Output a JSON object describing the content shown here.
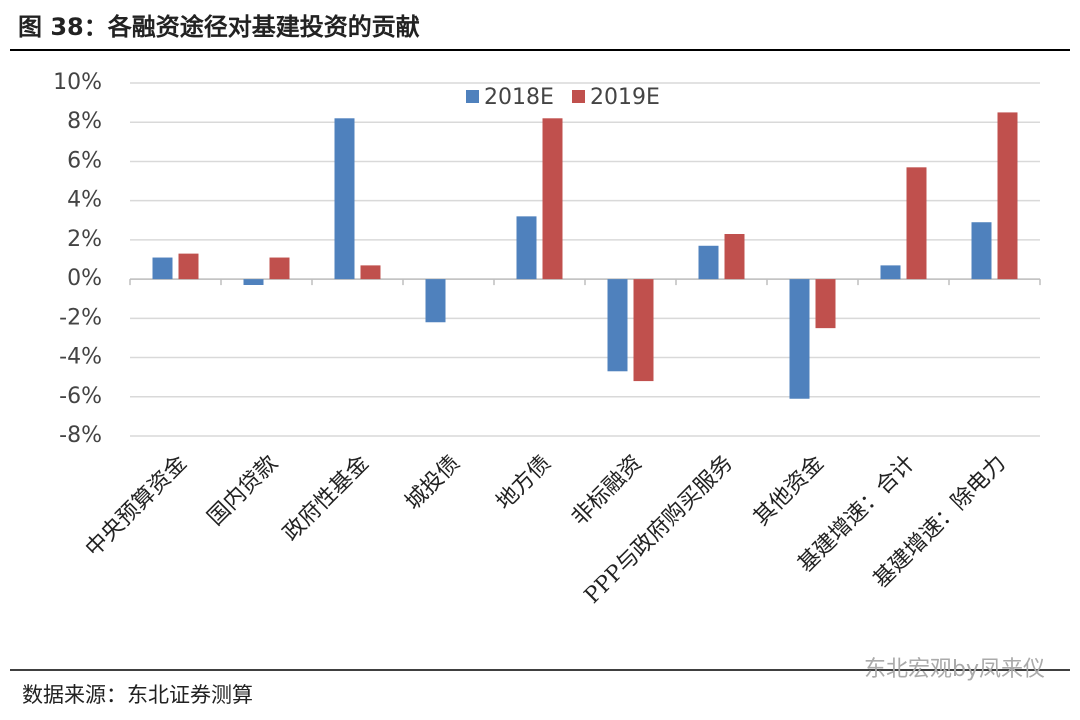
{
  "chart_data": {
    "type": "bar",
    "title": "图 38：各融资途径对基建投资的贡献",
    "source": "数据来源：东北证券测算",
    "watermark": "东北宏观by凤来仪",
    "categories": [
      "中央预算资金",
      "国内贷款",
      "政府性基金",
      "城投债",
      "地方债",
      "非标融资",
      "PPP与政府购买服务",
      "其他资金",
      "基建增速：合计",
      "基建增速：除电力"
    ],
    "series": [
      {
        "name": "2018E",
        "color": "#4f81bd",
        "values": [
          1.1,
          -0.3,
          8.2,
          -2.2,
          3.2,
          -4.7,
          1.7,
          -6.1,
          0.7,
          2.9
        ]
      },
      {
        "name": "2019E",
        "color": "#c0504d",
        "values": [
          1.3,
          1.1,
          0.7,
          null,
          8.2,
          -5.2,
          2.3,
          -2.5,
          5.7,
          8.5
        ]
      }
    ],
    "ylim": [
      -8,
      10
    ],
    "yticks": [
      {
        "value": -8,
        "label": "-8%"
      },
      {
        "value": -6,
        "label": "-6%"
      },
      {
        "value": -4,
        "label": "-4%"
      },
      {
        "value": -2,
        "label": "-2%"
      },
      {
        "value": 0,
        "label": "0%"
      },
      {
        "value": 2,
        "label": "2%"
      },
      {
        "value": 4,
        "label": "4%"
      },
      {
        "value": 6,
        "label": "6%"
      },
      {
        "value": 8,
        "label": "8%"
      },
      {
        "value": 10,
        "label": "10%"
      }
    ],
    "grid": true,
    "legend": "top"
  }
}
